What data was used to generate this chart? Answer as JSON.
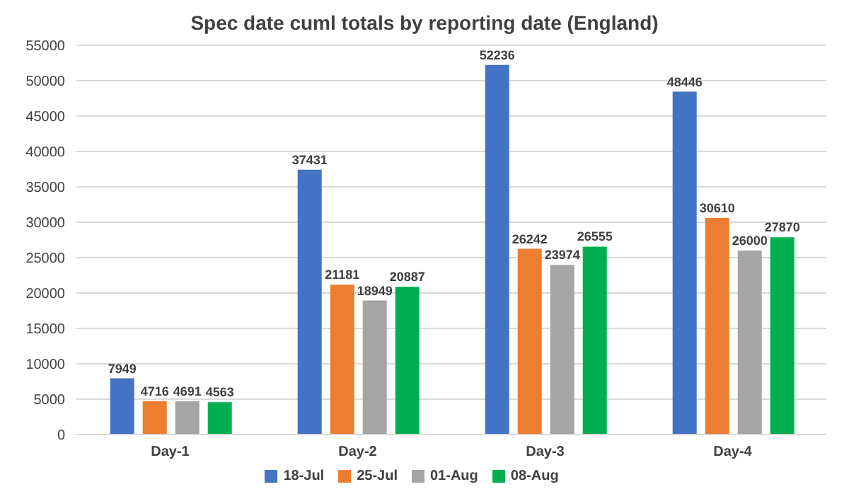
{
  "chart_data": {
    "type": "bar",
    "title": "Spec date cuml totals by reporting date (England)",
    "categories": [
      "Day-1",
      "Day-2",
      "Day-3",
      "Day-4"
    ],
    "series": [
      {
        "name": "18-Jul",
        "color": "#4472c4",
        "values": [
          7949,
          37431,
          52236,
          48446
        ]
      },
      {
        "name": "25-Jul",
        "color": "#ed7d31",
        "values": [
          4716,
          21181,
          26242,
          30610
        ]
      },
      {
        "name": "01-Aug",
        "color": "#a5a5a5",
        "values": [
          4691,
          18949,
          23974,
          26000
        ]
      },
      {
        "name": "08-Aug",
        "color": "#00b050",
        "values": [
          4563,
          20887,
          26555,
          27870
        ]
      }
    ],
    "ylim": [
      0,
      55000
    ],
    "yticks": [
      0,
      5000,
      10000,
      15000,
      20000,
      25000,
      30000,
      35000,
      40000,
      45000,
      50000,
      55000
    ],
    "grid": "y",
    "legend": "bottom",
    "data_labels": true
  }
}
